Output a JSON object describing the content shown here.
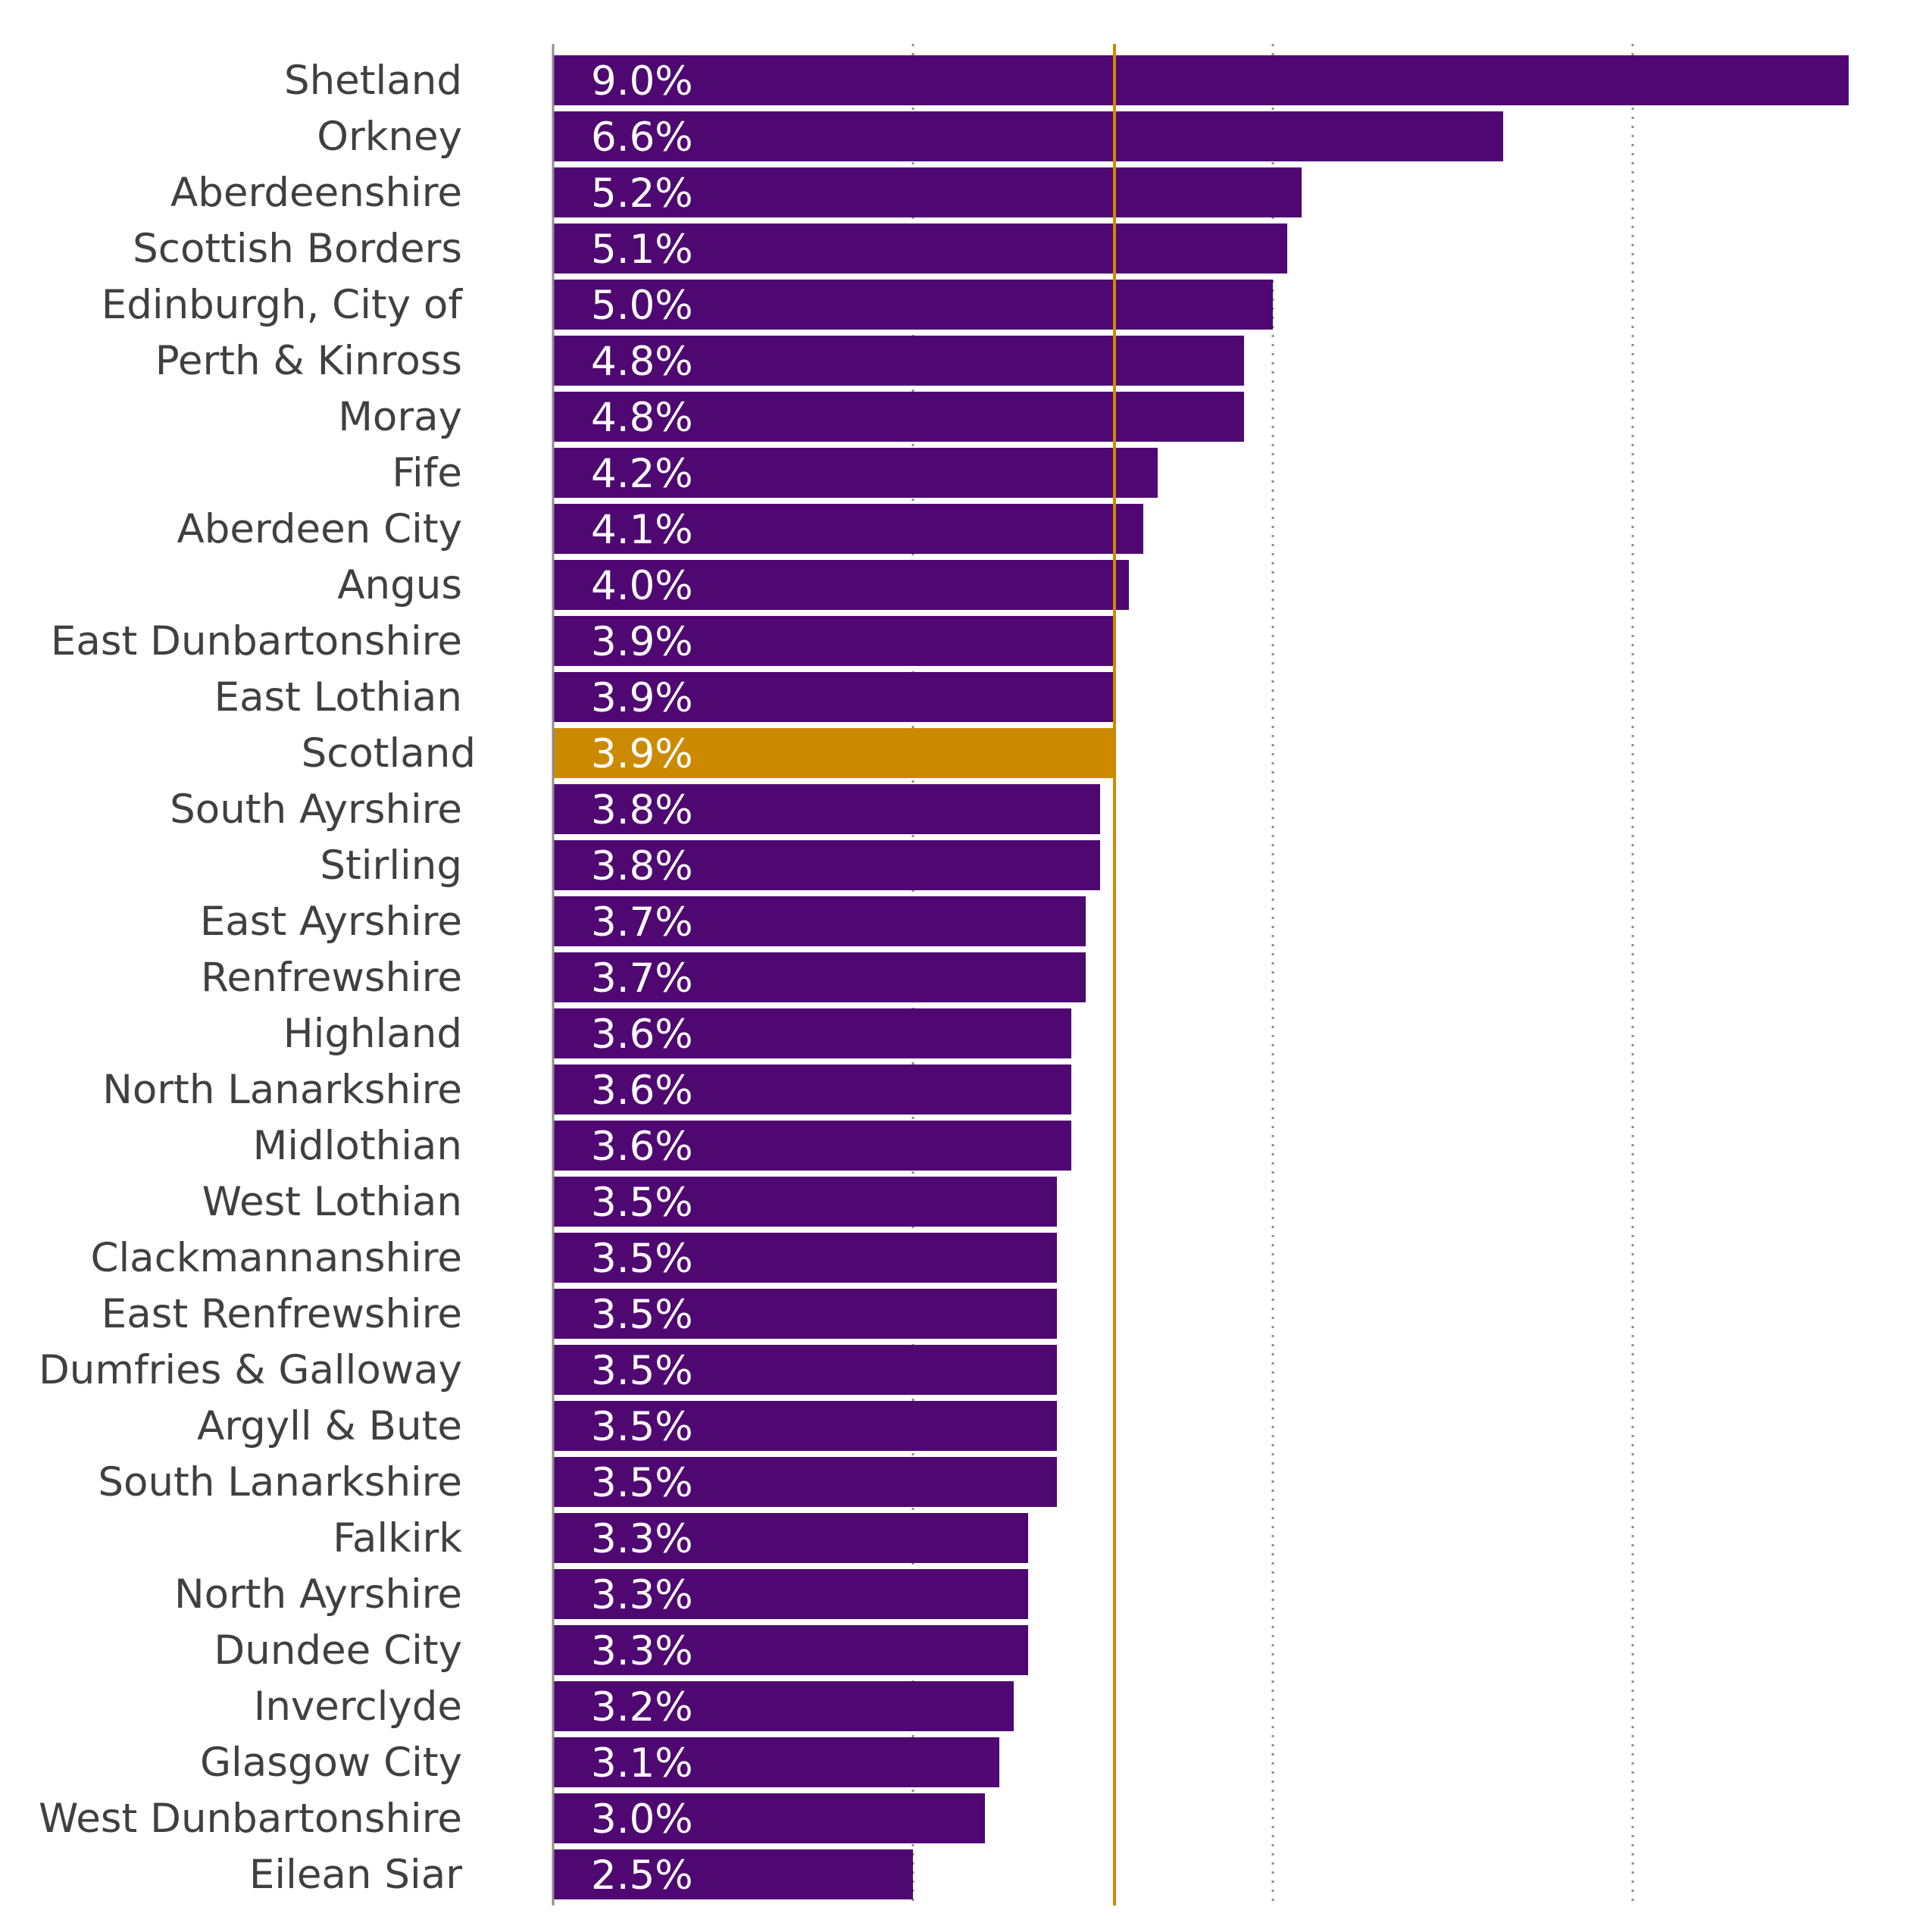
{
  "chart_data": {
    "type": "bar",
    "orientation": "horizontal",
    "categories": [
      "Shetland",
      "Orkney",
      "Aberdeenshire",
      "Scottish Borders",
      "Edinburgh, City of",
      "Perth & Kinross",
      "Moray",
      "Fife",
      "Aberdeen City",
      "Angus",
      "East Dunbartonshire",
      "East Lothian",
      "Scotland",
      "South Ayrshire",
      "Stirling",
      "East Ayrshire",
      "Renfrewshire",
      "Highland",
      "North Lanarkshire",
      "Midlothian",
      "West Lothian",
      "Clackmannanshire",
      "East Renfrewshire",
      "Dumfries & Galloway",
      "Argyll & Bute",
      "South Lanarkshire",
      "Falkirk",
      "North Ayrshire",
      "Dundee City",
      "Inverclyde",
      "Glasgow City",
      "West Dunbartonshire",
      "Eilean Siar"
    ],
    "values": [
      9.0,
      6.6,
      5.2,
      5.1,
      5.0,
      4.8,
      4.8,
      4.2,
      4.1,
      4.0,
      3.9,
      3.9,
      3.9,
      3.8,
      3.8,
      3.7,
      3.7,
      3.6,
      3.6,
      3.6,
      3.5,
      3.5,
      3.5,
      3.5,
      3.5,
      3.5,
      3.3,
      3.3,
      3.3,
      3.2,
      3.1,
      3.0,
      2.5
    ],
    "labels": [
      "9.0%",
      "6.6%",
      "5.2%",
      "5.1%",
      "5.0%",
      "4.8%",
      "4.8%",
      "4.2%",
      "4.1%",
      "4.0%",
      "3.9%",
      "3.9%",
      "3.9%",
      "3.8%",
      "3.8%",
      "3.7%",
      "3.7%",
      "3.6%",
      "3.6%",
      "3.6%",
      "3.5%",
      "3.5%",
      "3.5%",
      "3.5%",
      "3.5%",
      "3.5%",
      "3.3%",
      "3.3%",
      "3.3%",
      "3.2%",
      "3.1%",
      "3.0%",
      "2.5%"
    ],
    "highlight_category": "Scotland",
    "reference_line": 3.9,
    "xlim": [
      0,
      9.0
    ],
    "grid_values": [
      2.5,
      5.0,
      7.5
    ],
    "grid": true,
    "grid_style": "dotted vertical",
    "legend": "none",
    "colors": {
      "bar": "#4f0871",
      "highlight": "#cc8a00",
      "reference_line": "#cc8a00",
      "grid": "#8c8c8c",
      "axis": "#8c8c8c",
      "category_text": "#404040",
      "value_text": "#ffffff"
    }
  }
}
